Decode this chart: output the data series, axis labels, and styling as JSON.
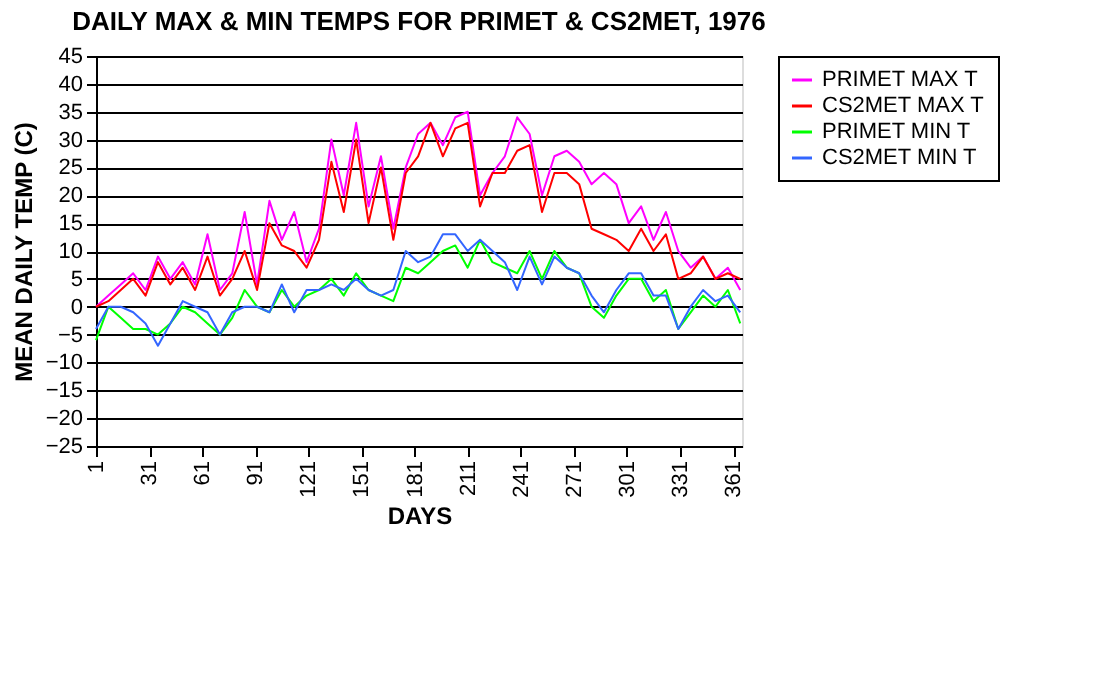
{
  "chart_data": {
    "type": "line",
    "title": "DAILY MAX & MIN TEMPS FOR PRIMET & CS2MET, 1976",
    "xlabel": "DAYS",
    "ylabel": "MEAN DAILY TEMP (C)",
    "x": [
      1,
      8,
      15,
      22,
      29,
      36,
      43,
      50,
      57,
      64,
      71,
      78,
      85,
      92,
      99,
      106,
      113,
      120,
      127,
      134,
      141,
      148,
      155,
      162,
      169,
      176,
      183,
      190,
      197,
      204,
      211,
      218,
      225,
      232,
      239,
      246,
      253,
      260,
      267,
      274,
      281,
      288,
      295,
      302,
      309,
      316,
      323,
      330,
      337,
      344,
      351,
      358,
      365
    ],
    "series": [
      {
        "name": "PRIMET MAX T",
        "color": "#ff00ff",
        "values": [
          0,
          2,
          4,
          6,
          3,
          9,
          5,
          8,
          4,
          13,
          3,
          6,
          17,
          4,
          19,
          12,
          17,
          8,
          14,
          30,
          20,
          33,
          18,
          27,
          14,
          25,
          31,
          33,
          29,
          34,
          35,
          20,
          24,
          27,
          34,
          31,
          20,
          27,
          28,
          26,
          22,
          24,
          22,
          15,
          18,
          12,
          17,
          10,
          7,
          9,
          5,
          7,
          3
        ]
      },
      {
        "name": "CS2MET MAX T",
        "color": "#ff0000",
        "values": [
          0,
          1,
          3,
          5,
          2,
          8,
          4,
          7,
          3,
          9,
          2,
          5,
          10,
          3,
          15,
          11,
          10,
          7,
          12,
          26,
          17,
          30,
          15,
          25,
          12,
          24,
          27,
          33,
          27,
          32,
          33,
          18,
          24,
          24,
          28,
          29,
          17,
          24,
          24,
          22,
          14,
          13,
          12,
          10,
          14,
          10,
          13,
          5,
          6,
          9,
          5,
          6,
          5
        ]
      },
      {
        "name": "PRIMET MIN T",
        "color": "#00ff00",
        "values": [
          -6,
          0,
          -2,
          -4,
          -4,
          -5,
          -3,
          0,
          -1,
          -3,
          -5,
          -2,
          3,
          0,
          -1,
          3,
          0,
          2,
          3,
          5,
          2,
          6,
          3,
          2,
          1,
          7,
          6,
          8,
          10,
          11,
          7,
          12,
          8,
          7,
          6,
          10,
          5,
          10,
          7,
          6,
          0,
          -2,
          2,
          5,
          5,
          1,
          3,
          -4,
          -1,
          2,
          0,
          3,
          -3
        ]
      },
      {
        "name": "CS2MET MIN T",
        "color": "#3366ff",
        "values": [
          -4,
          0,
          0,
          -1,
          -3,
          -7,
          -3,
          1,
          0,
          -1,
          -5,
          -1,
          0,
          0,
          -1,
          4,
          -1,
          3,
          3,
          4,
          3,
          5,
          3,
          2,
          3,
          10,
          8,
          9,
          13,
          13,
          10,
          12,
          10,
          8,
          3,
          9,
          4,
          9,
          7,
          6,
          2,
          -1,
          3,
          6,
          6,
          2,
          2,
          -4,
          0,
          3,
          1,
          2,
          -1
        ]
      }
    ],
    "xlim": [
      1,
      366
    ],
    "xticks": [
      1,
      31,
      61,
      91,
      121,
      151,
      181,
      211,
      241,
      271,
      301,
      331,
      361
    ],
    "ylim": [
      -25,
      45
    ],
    "yticks": [
      -25,
      -20,
      -15,
      -10,
      -5,
      0,
      5,
      10,
      15,
      20,
      25,
      30,
      35,
      40,
      45
    ],
    "grid": "y",
    "legend": "right",
    "line_style": "solid",
    "marker": "none"
  }
}
